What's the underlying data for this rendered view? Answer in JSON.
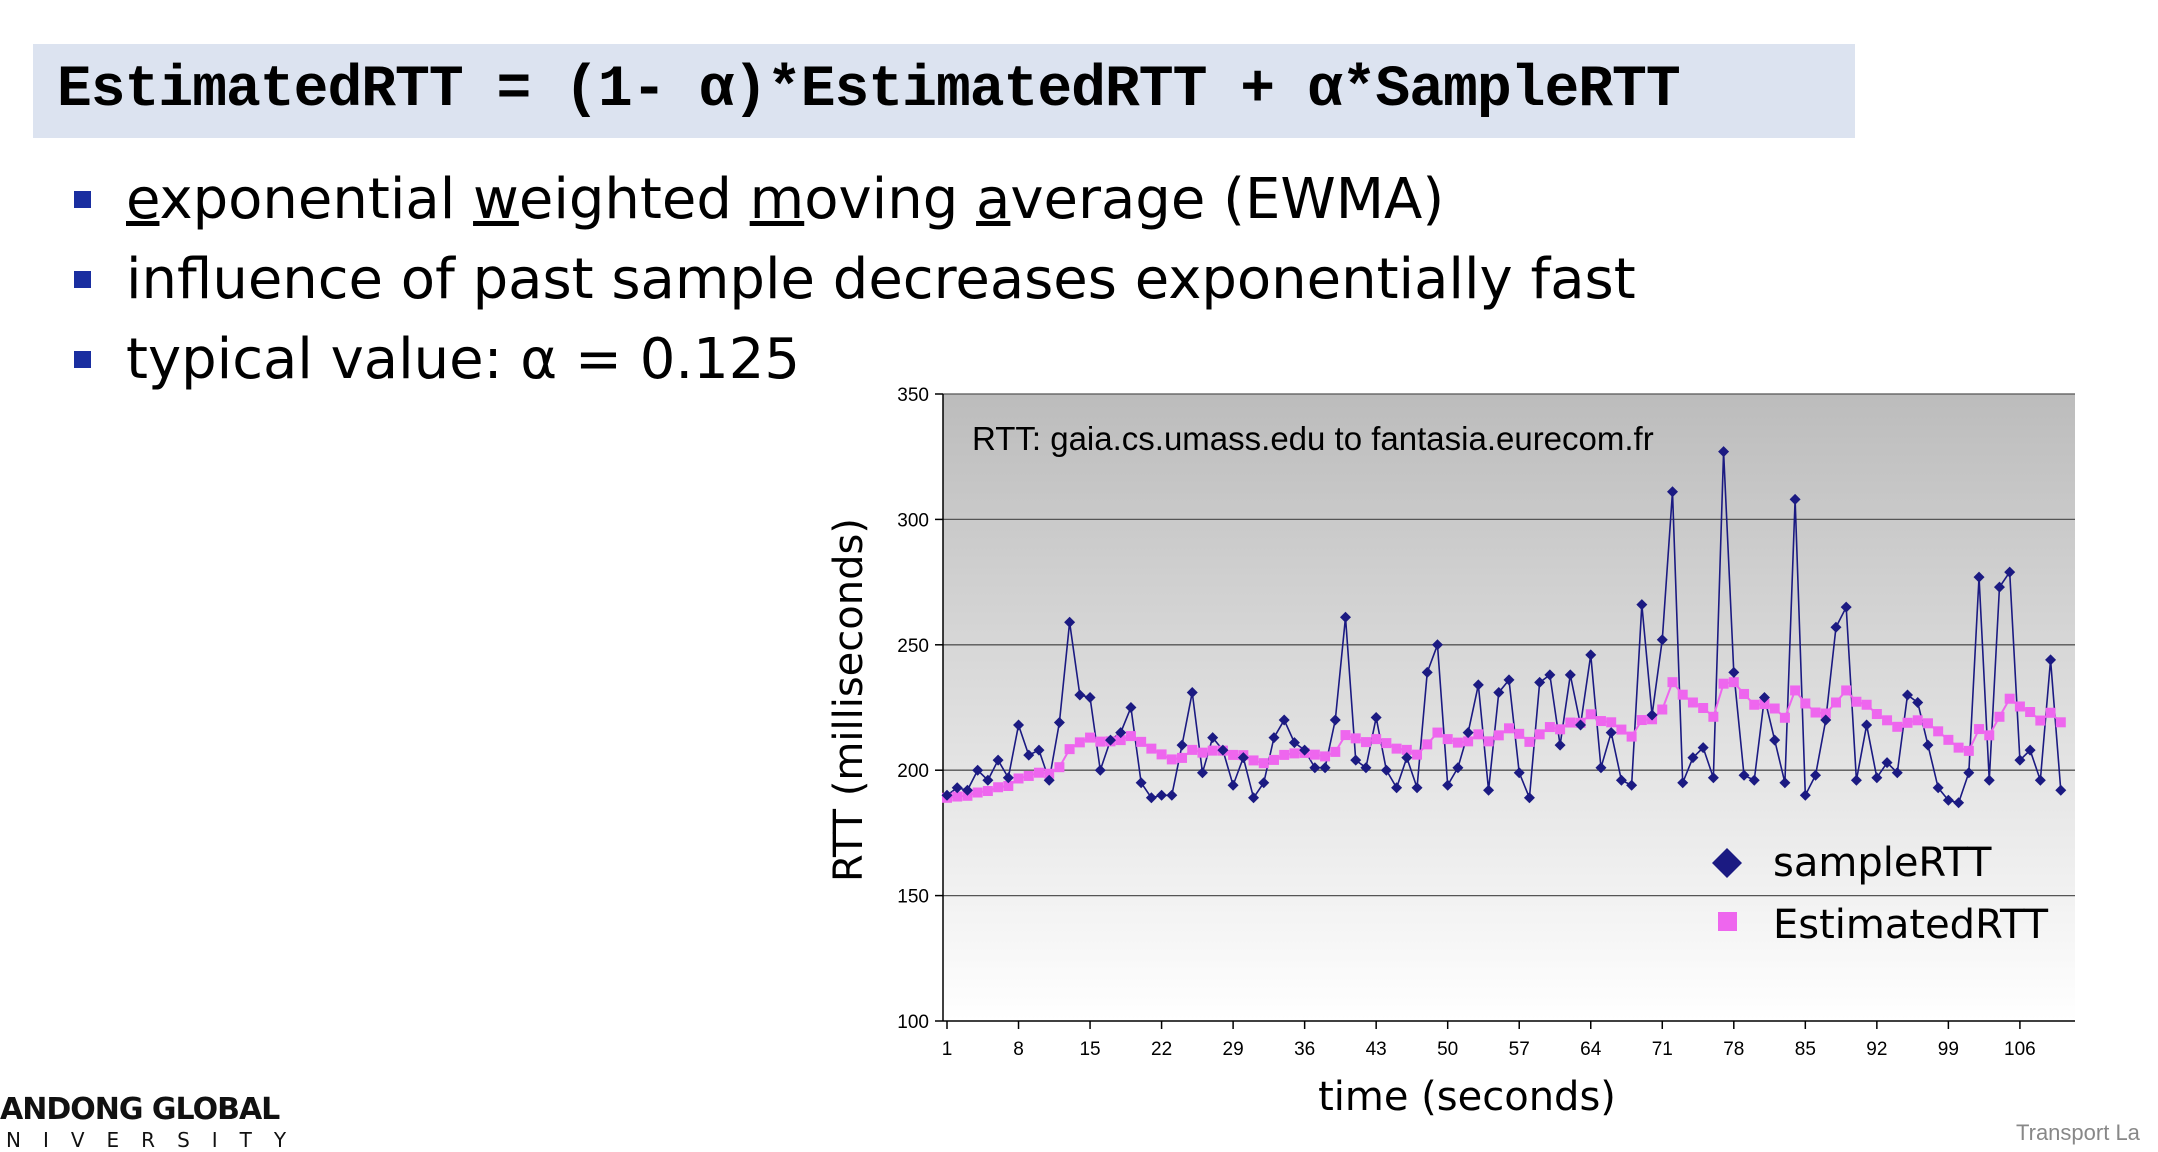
{
  "slide": {
    "formula": "EstimatedRTT = (1- α)*EstimatedRTT + α*SampleRTT",
    "bullets": [
      {
        "parts": [
          [
            "e",
            true
          ],
          [
            "xponential ",
            false
          ],
          [
            "w",
            true
          ],
          [
            "eighted ",
            false
          ],
          [
            "m",
            true
          ],
          [
            "oving ",
            false
          ],
          [
            "a",
            true
          ],
          [
            "verage (EWMA)",
            false
          ]
        ]
      },
      {
        "parts": [
          [
            "influence of past sample decreases exponentially fast",
            false
          ]
        ]
      },
      {
        "parts": [
          [
            "typical value: α = 0.125",
            false
          ]
        ]
      }
    ],
    "logo": "ANDONG GLOBAL",
    "logo_sub": "NIVERSITY",
    "footer": "Transport La"
  },
  "chart_data": {
    "type": "line",
    "title": "RTT: gaia.cs.umass.edu to fantasia.eurecom.fr",
    "xlabel": "time (seconds)",
    "ylabel": "RTT (milliseconds)",
    "ylim": [
      100,
      350
    ],
    "yticks": [
      100,
      150,
      200,
      250,
      300,
      350
    ],
    "xticks": [
      1,
      8,
      15,
      22,
      29,
      36,
      43,
      50,
      57,
      64,
      71,
      78,
      85,
      92,
      99,
      106
    ],
    "xlim": [
      1,
      111
    ],
    "grid": "horizontal",
    "legend": "bottom-right",
    "colors": {
      "sample": "#1b1a82",
      "estimated": "#ee66ee"
    },
    "series": [
      {
        "name": "sampleRTT",
        "marker": "diamond",
        "values": [
          190,
          193,
          192,
          200,
          196,
          204,
          197,
          218,
          206,
          208,
          196,
          219,
          259,
          230,
          229,
          200,
          212,
          215,
          225,
          195,
          189,
          190,
          190,
          210,
          231,
          199,
          213,
          208,
          194,
          205,
          189,
          195,
          213,
          220,
          211,
          208,
          201,
          201,
          220,
          261,
          204,
          201,
          221,
          200,
          193,
          205,
          193,
          239,
          250,
          194,
          201,
          215,
          234,
          192,
          231,
          236,
          199,
          189,
          235,
          238,
          210,
          238,
          218,
          246,
          201,
          215,
          196,
          194,
          266,
          222,
          252,
          311,
          195,
          205,
          209,
          197,
          327,
          239,
          198,
          196,
          229,
          212,
          195,
          308,
          190,
          198,
          220,
          257,
          265,
          196,
          218,
          197,
          203,
          199,
          230,
          227,
          210,
          193,
          188,
          187,
          199,
          277,
          196,
          273,
          279,
          204,
          208,
          196,
          244,
          192
        ]
      },
      {
        "name": "EstimatedRTT",
        "marker": "square",
        "values": [
          189.0,
          189.5,
          189.8,
          191.1,
          191.7,
          193.2,
          193.7,
          196.7,
          197.7,
          199.0,
          198.6,
          201.2,
          208.4,
          211.1,
          213.0,
          211.4,
          211.5,
          212.0,
          213.6,
          211.3,
          208.6,
          206.3,
          204.3,
          204.9,
          208.1,
          207.0,
          207.8,
          207.8,
          206.1,
          206.0,
          203.9,
          202.8,
          204.1,
          206.1,
          206.7,
          206.9,
          206.2,
          205.5,
          207.3,
          214.0,
          212.7,
          211.2,
          212.4,
          210.8,
          208.6,
          208.1,
          206.2,
          210.3,
          215.0,
          212.4,
          211.0,
          211.5,
          214.3,
          211.5,
          213.9,
          216.7,
          214.5,
          211.3,
          214.3,
          217.2,
          216.3,
          219.0,
          218.9,
          222.3,
          219.6,
          219.1,
          216.2,
          213.4,
          220.0,
          220.3,
          224.2,
          235.1,
          230.1,
          227.0,
          224.8,
          221.3,
          234.5,
          235.1,
          230.4,
          226.1,
          226.4,
          224.6,
          220.9,
          231.8,
          226.6,
          223.0,
          222.6,
          227.0,
          231.8,
          227.3,
          226.1,
          222.4,
          219.9,
          217.3,
          218.9,
          219.9,
          218.7,
          215.5,
          212.1,
          209.0,
          207.7,
          216.4,
          213.9,
          221.3,
          228.5,
          225.4,
          223.2,
          219.8,
          222.9,
          219.1
        ]
      }
    ]
  }
}
